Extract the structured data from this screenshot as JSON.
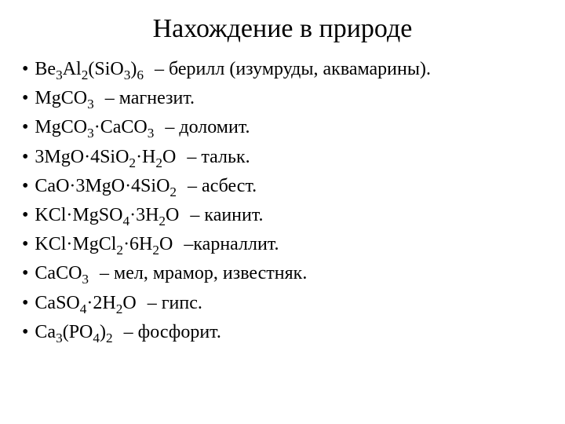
{
  "title": "Нахождение в природе",
  "text_color": "#000000",
  "background_color": "#ffffff",
  "title_fontsize": 34,
  "item_fontsize": 24,
  "bullet_char": "•",
  "items": [
    {
      "formula_parts": [
        {
          "t": "Be"
        },
        {
          "sub": "3"
        },
        {
          "t": "Al"
        },
        {
          "sub": "2"
        },
        {
          "t": "(SiO"
        },
        {
          "sub": "3"
        },
        {
          "t": ")"
        },
        {
          "sub": "6"
        }
      ],
      "description": "– берилл (изумруды, аквамарины)."
    },
    {
      "formula_parts": [
        {
          "t": "MgCO"
        },
        {
          "sub": "3"
        }
      ],
      "description": "– магнезит."
    },
    {
      "formula_parts": [
        {
          "t": "MgCO"
        },
        {
          "sub": "3"
        },
        {
          "t": "·CaCO"
        },
        {
          "sub": "3"
        }
      ],
      "description": "– доломит."
    },
    {
      "formula_parts": [
        {
          "t": "3MgO·4SiO"
        },
        {
          "sub": "2"
        },
        {
          "t": "·H"
        },
        {
          "sub": "2"
        },
        {
          "t": "O"
        }
      ],
      "description": "– тальк."
    },
    {
      "formula_parts": [
        {
          "t": "CaO·3MgO·4SiO"
        },
        {
          "sub": "2"
        }
      ],
      "description": "– асбест."
    },
    {
      "formula_parts": [
        {
          "t": "KCl·MgSO"
        },
        {
          "sub": "4"
        },
        {
          "t": "·3H"
        },
        {
          "sub": "2"
        },
        {
          "t": "O"
        }
      ],
      "description": "– каинит."
    },
    {
      "formula_parts": [
        {
          "t": "KCl·MgCl"
        },
        {
          "sub": "2"
        },
        {
          "t": "·6H"
        },
        {
          "sub": "2"
        },
        {
          "t": "O"
        }
      ],
      "description": "–карналлит."
    },
    {
      "formula_parts": [
        {
          "t": "CaCO"
        },
        {
          "sub": "3"
        }
      ],
      "description": "– мел, мрамор, известняк."
    },
    {
      "formula_parts": [
        {
          "t": "CaSO"
        },
        {
          "sub": "4"
        },
        {
          "t": "·2H"
        },
        {
          "sub": "2"
        },
        {
          "t": "O"
        }
      ],
      "description": "– гипс."
    },
    {
      "formula_parts": [
        {
          "t": "Ca"
        },
        {
          "sub": "3"
        },
        {
          "t": "(PO"
        },
        {
          "sub": "4"
        },
        {
          "t": ")"
        },
        {
          "sub": "2"
        }
      ],
      "description": "– фосфорит."
    }
  ]
}
